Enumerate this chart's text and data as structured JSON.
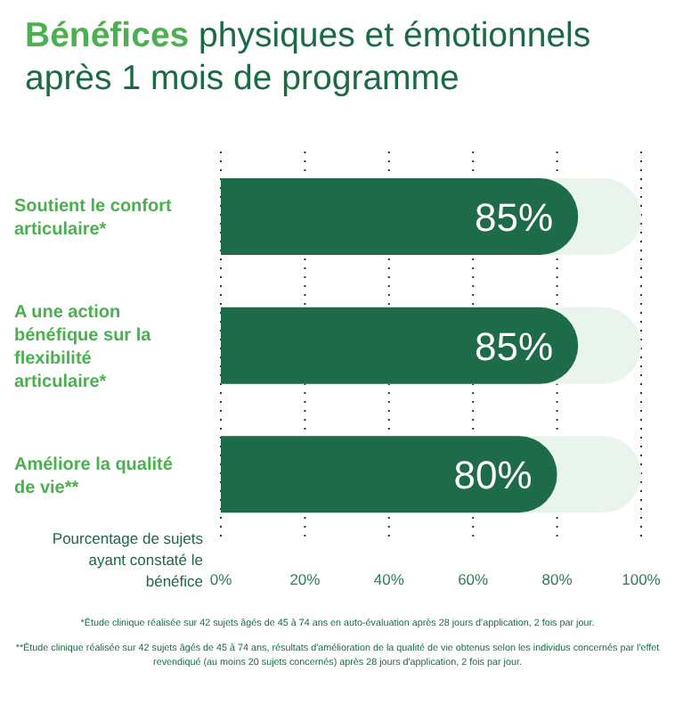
{
  "chart_data": {
    "type": "bar",
    "orientation": "horizontal",
    "title": "Bénéfices physiques et émotionnels après 1 mois de programme",
    "categories": [
      "Soutient le confort articulaire*",
      "A une action bénéfique sur la flexibilité articulaire*",
      "Améliore la qualité de vie**"
    ],
    "values": [
      85,
      85,
      80
    ],
    "value_labels": [
      "85%",
      "85%",
      "80%"
    ],
    "color": "#1e6b4a",
    "xlabel": "Pourcentage de sujets ayant constaté le bénéfice",
    "xlim": [
      0,
      100
    ],
    "xticks": [
      {
        "value": 0,
        "label": "0%"
      },
      {
        "value": 20,
        "label": "20%"
      },
      {
        "value": 40,
        "label": "40%"
      },
      {
        "value": 60,
        "label": "60%"
      },
      {
        "value": 80,
        "label": "80%"
      },
      {
        "value": 100,
        "label": "100%"
      }
    ],
    "grid": "x",
    "annotations": [
      "*Étude clinique réalisée sur 42 sujets âgés de 45 à 74 ans en auto-évaluation après 28 jours d'application, 2 fois par jour.",
      "**Étude clinique réalisée sur 42 sujets âgés de 45 à 74 ans, résultats d'amélioration de la qualité de vie obtenus selon les individus concernés par l'effet revendiqué (au moins 20 sujets concernés) après 28 jours d'application, 2 fois par jour."
    ]
  }
}
